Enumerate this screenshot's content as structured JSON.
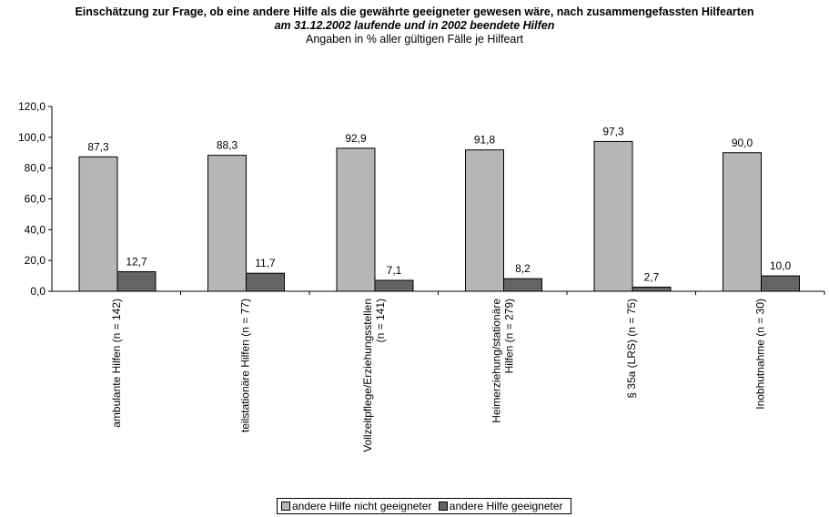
{
  "chart_data": {
    "type": "bar",
    "title": "Einschätzung zur Frage, ob eine andere Hilfe als die gewährte geeigneter gewesen wäre, nach zusammengefassten Hilfearten",
    "subtitle": "am 31.12.2002 laufende und in 2002 beendete Hilfen",
    "note": "Angaben in % aller gültigen Fälle je Hilfeart",
    "categories": [
      [
        "ambulante Hilfen (n = 142)"
      ],
      [
        "teilstationäre Hilfen (n = 77)"
      ],
      [
        "Vollzeitpflege/Erziehungsstellen",
        "(n = 141)"
      ],
      [
        "Heimerziehung/stationäre",
        "Hilfen (n = 279)"
      ],
      [
        "§ 35a (LRS) (n = 75)"
      ],
      [
        "Inobhutnahme (n = 30)"
      ]
    ],
    "series": [
      {
        "name": "andere Hilfe nicht geeigneter",
        "values": [
          87.3,
          88.3,
          92.9,
          91.8,
          97.3,
          90.0
        ],
        "labels": [
          "87,3",
          "88,3",
          "92,9",
          "91,8",
          "97,3",
          "90,0"
        ],
        "color": "#b4b6b8"
      },
      {
        "name": "andere Hilfe geeigneter",
        "values": [
          12.7,
          11.7,
          7.1,
          8.2,
          2.7,
          10.0
        ],
        "labels": [
          "12,7",
          "11,7",
          "7,1",
          "8,2",
          "2,7",
          "10,0"
        ],
        "color": "#646464"
      }
    ],
    "yticks": [
      "0,0",
      "20,0",
      "40,0",
      "60,0",
      "80,0",
      "100,0",
      "120,0"
    ],
    "ylim": [
      0,
      120
    ],
    "grid": false,
    "legend_position": "bottom"
  }
}
